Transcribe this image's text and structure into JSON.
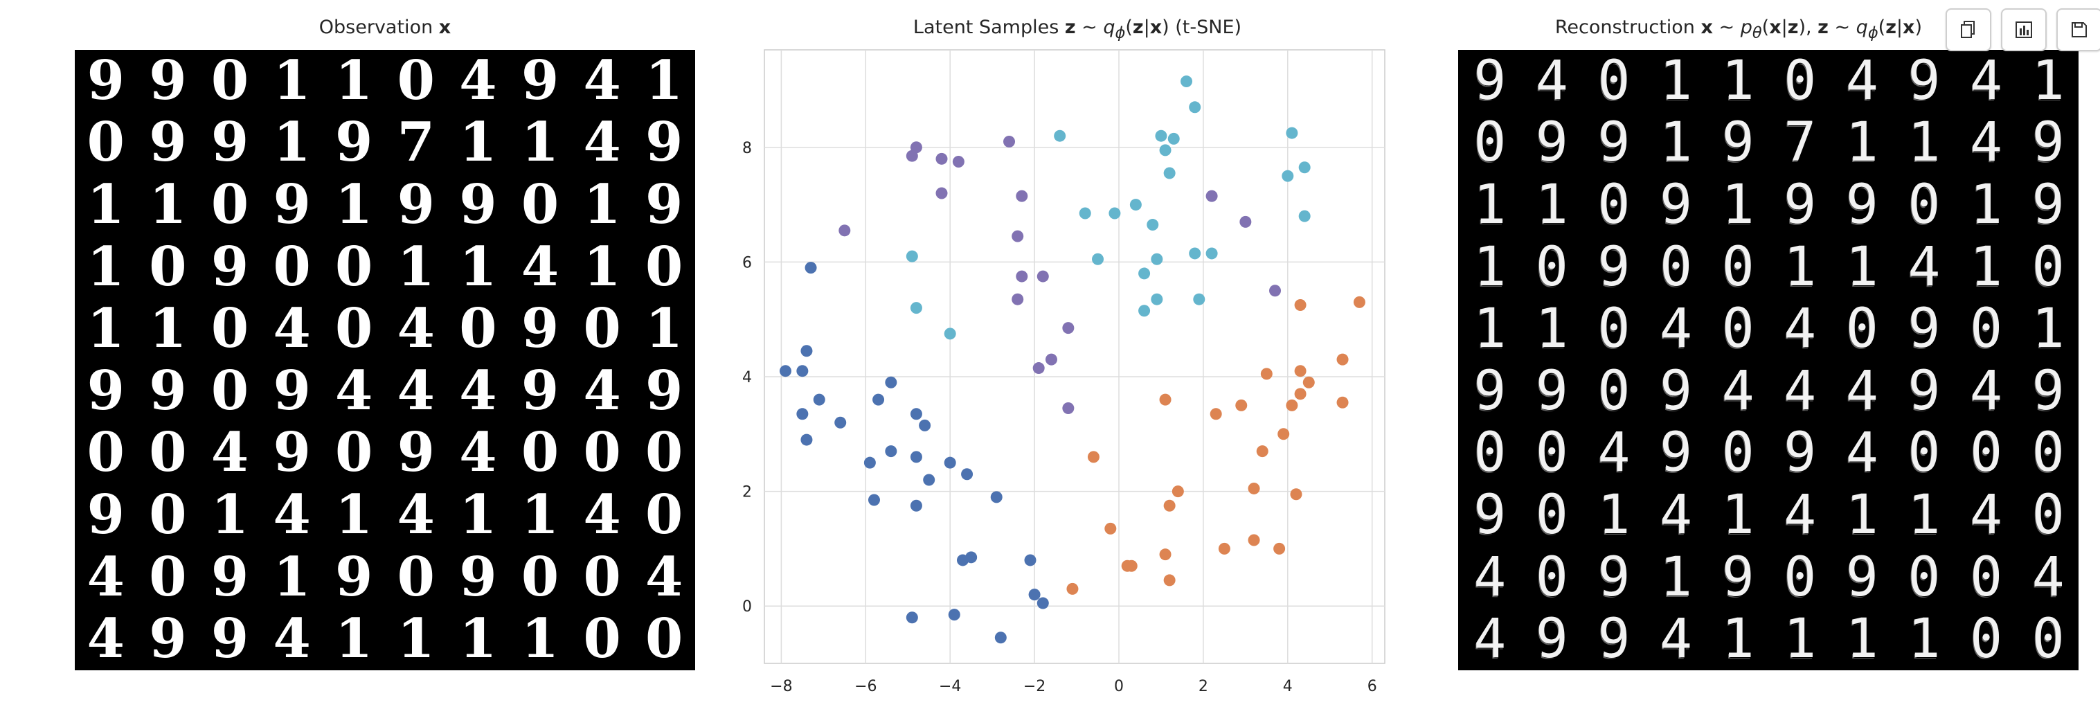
{
  "titles": {
    "observation": {
      "text": "Observation ",
      "bold": "x"
    },
    "latent": {
      "pre": "Latent Samples ",
      "z": "z",
      "tilde": " ~ ",
      "q": "q",
      "phi": "ϕ",
      "paren": "(",
      "z2": "z",
      "bar": "|",
      "x": "x",
      "close": ") (t-SNE)"
    },
    "reconstruction": {
      "pre": "Reconstruction ",
      "x": "x",
      "tilde": " ~ ",
      "p": "p",
      "theta": "θ",
      "paren": "(",
      "x2": "x",
      "bar": "|",
      "z": "z",
      "close": "), ",
      "z2": "z",
      "tilde2": " ~ ",
      "q": "q",
      "phi": "ϕ",
      "paren2": "(",
      "z3": "z",
      "bar2": "|",
      "x3": "x",
      "close2": ")"
    }
  },
  "observation_digits": [
    "9",
    "9",
    "0",
    "1",
    "1",
    "0",
    "4",
    "9",
    "4",
    "1",
    "0",
    "9",
    "9",
    "1",
    "9",
    "7",
    "1",
    "1",
    "4",
    "9",
    "1",
    "1",
    "0",
    "9",
    "1",
    "9",
    "9",
    "0",
    "1",
    "9",
    "1",
    "0",
    "9",
    "0",
    "0",
    "1",
    "1",
    "4",
    "1",
    "0",
    "1",
    "1",
    "0",
    "4",
    "0",
    "4",
    "0",
    "9",
    "0",
    "1",
    "9",
    "9",
    "0",
    "9",
    "4",
    "4",
    "4",
    "9",
    "4",
    "9",
    "0",
    "0",
    "4",
    "9",
    "0",
    "9",
    "4",
    "0",
    "0",
    "0",
    "9",
    "0",
    "1",
    "4",
    "1",
    "4",
    "1",
    "1",
    "4",
    "0",
    "4",
    "0",
    "9",
    "1",
    "9",
    "0",
    "9",
    "0",
    "0",
    "4",
    "4",
    "9",
    "9",
    "4",
    "1",
    "1",
    "1",
    "1",
    "0",
    "0"
  ],
  "reconstruction_digits": [
    "9",
    "4",
    "0",
    "1",
    "1",
    "0",
    "4",
    "9",
    "4",
    "1",
    "0",
    "9",
    "9",
    "1",
    "9",
    "7",
    "1",
    "1",
    "4",
    "9",
    "1",
    "1",
    "0",
    "9",
    "1",
    "9",
    "9",
    "0",
    "1",
    "9",
    "1",
    "0",
    "9",
    "0",
    "0",
    "1",
    "1",
    "4",
    "1",
    "0",
    "1",
    "1",
    "0",
    "4",
    "0",
    "4",
    "0",
    "9",
    "0",
    "1",
    "9",
    "9",
    "0",
    "9",
    "4",
    "4",
    "4",
    "9",
    "4",
    "9",
    "0",
    "0",
    "4",
    "9",
    "0",
    "9",
    "4",
    "0",
    "0",
    "0",
    "9",
    "0",
    "1",
    "4",
    "1",
    "4",
    "1",
    "1",
    "4",
    "0",
    "4",
    "0",
    "9",
    "1",
    "9",
    "0",
    "9",
    "0",
    "0",
    "4",
    "4",
    "9",
    "9",
    "4",
    "1",
    "1",
    "1",
    "1",
    "0",
    "0"
  ],
  "toolbar": [
    {
      "name": "copy-icon"
    },
    {
      "name": "chart-icon"
    },
    {
      "name": "save-icon"
    }
  ],
  "chart_data": {
    "type": "scatter",
    "xlim": [
      -8.4,
      6.3
    ],
    "ylim": [
      -1.0,
      9.7
    ],
    "xticks": [
      -8,
      -6,
      -4,
      -2,
      0,
      2,
      4,
      6
    ],
    "yticks": [
      0,
      2,
      4,
      6,
      8
    ],
    "grid": true,
    "series": [
      {
        "color": "#4c72b0",
        "points": [
          [
            -7.3,
            5.9
          ],
          [
            -7.9,
            4.1
          ],
          [
            -7.5,
            4.1
          ],
          [
            -7.4,
            4.45
          ],
          [
            -7.5,
            3.35
          ],
          [
            -7.1,
            3.6
          ],
          [
            -7.4,
            2.9
          ],
          [
            -6.6,
            3.2
          ],
          [
            -5.9,
            2.5
          ],
          [
            -5.7,
            3.6
          ],
          [
            -5.4,
            3.9
          ],
          [
            -5.8,
            1.85
          ],
          [
            -5.4,
            2.7
          ],
          [
            -4.8,
            3.35
          ],
          [
            -4.6,
            3.15
          ],
          [
            -4.8,
            2.6
          ],
          [
            -4.8,
            1.75
          ],
          [
            -4.5,
            2.2
          ],
          [
            -4.0,
            2.5
          ],
          [
            -3.6,
            2.3
          ],
          [
            -2.9,
            1.9
          ],
          [
            -3.7,
            0.8
          ],
          [
            -3.5,
            0.85
          ],
          [
            -2.1,
            0.8
          ],
          [
            -2.0,
            0.2
          ],
          [
            -1.8,
            0.05
          ],
          [
            -4.9,
            -0.2
          ],
          [
            -3.9,
            -0.15
          ],
          [
            -2.8,
            -0.55
          ]
        ]
      },
      {
        "color": "#dd8452",
        "points": [
          [
            -0.6,
            2.6
          ],
          [
            -0.2,
            1.35
          ],
          [
            0.2,
            0.7
          ],
          [
            0.3,
            0.7
          ],
          [
            -1.1,
            0.3
          ],
          [
            1.1,
            3.6
          ],
          [
            1.1,
            0.9
          ],
          [
            1.2,
            1.75
          ],
          [
            1.4,
            2.0
          ],
          [
            1.2,
            0.45
          ],
          [
            2.3,
            3.35
          ],
          [
            2.5,
            1.0
          ],
          [
            2.9,
            3.5
          ],
          [
            3.2,
            2.05
          ],
          [
            3.2,
            1.15
          ],
          [
            3.4,
            2.7
          ],
          [
            3.5,
            4.05
          ],
          [
            3.8,
            1.0
          ],
          [
            3.9,
            3.0
          ],
          [
            4.1,
            3.5
          ],
          [
            4.2,
            1.95
          ],
          [
            4.3,
            3.7
          ],
          [
            4.3,
            5.25
          ],
          [
            4.3,
            4.1
          ],
          [
            4.5,
            3.9
          ],
          [
            5.3,
            4.3
          ],
          [
            5.3,
            3.55
          ],
          [
            5.7,
            5.3
          ]
        ]
      },
      {
        "color": "#8172b2",
        "points": [
          [
            -6.5,
            6.55
          ],
          [
            -4.9,
            7.85
          ],
          [
            -4.8,
            8.0
          ],
          [
            -4.2,
            7.8
          ],
          [
            -3.8,
            7.75
          ],
          [
            -4.2,
            7.2
          ],
          [
            -2.6,
            8.1
          ],
          [
            -2.3,
            7.15
          ],
          [
            -2.4,
            6.45
          ],
          [
            -2.3,
            5.75
          ],
          [
            -2.4,
            5.35
          ],
          [
            -1.8,
            5.75
          ],
          [
            -1.2,
            4.85
          ],
          [
            -1.9,
            4.15
          ],
          [
            -1.6,
            4.3
          ],
          [
            -1.2,
            3.45
          ],
          [
            2.2,
            7.15
          ],
          [
            3.0,
            6.7
          ],
          [
            3.7,
            5.5
          ]
        ]
      },
      {
        "color": "#64b5cd",
        "points": [
          [
            -4.9,
            6.1
          ],
          [
            -4.8,
            5.2
          ],
          [
            -4.0,
            4.75
          ],
          [
            -1.4,
            8.2
          ],
          [
            -0.8,
            6.85
          ],
          [
            -0.5,
            6.05
          ],
          [
            -0.1,
            6.85
          ],
          [
            0.4,
            7.0
          ],
          [
            0.6,
            5.8
          ],
          [
            0.6,
            5.15
          ],
          [
            0.8,
            6.65
          ],
          [
            0.9,
            5.35
          ],
          [
            0.9,
            6.05
          ],
          [
            1.0,
            8.2
          ],
          [
            1.1,
            7.95
          ],
          [
            1.2,
            7.55
          ],
          [
            1.3,
            8.15
          ],
          [
            1.6,
            9.15
          ],
          [
            1.8,
            8.7
          ],
          [
            1.8,
            6.15
          ],
          [
            1.9,
            5.35
          ],
          [
            2.2,
            6.15
          ],
          [
            4.0,
            7.5
          ],
          [
            4.1,
            8.25
          ],
          [
            4.4,
            7.65
          ],
          [
            4.4,
            6.8
          ]
        ]
      }
    ]
  }
}
